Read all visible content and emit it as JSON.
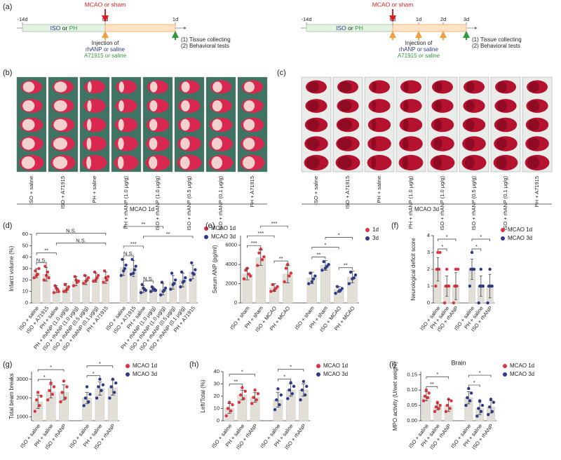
{
  "panel_a": {
    "label": "(a)",
    "timelines": [
      {
        "days": [
          "-14d",
          "0d",
          "1d"
        ],
        "surgery": "MCAO or sham",
        "pretreatment": {
          "drug1": "ISO",
          "joiner": "or",
          "drug2": "PH"
        },
        "injection": [
          "Injection of",
          "rhANP or saline",
          "A71915 or saline"
        ],
        "outcome": [
          "(1) Tissue collecting",
          "(2) Behavioral tests"
        ]
      },
      {
        "days": [
          "-14d",
          "0d",
          "1d",
          "2d",
          "3d"
        ],
        "surgery": "MCAO or sham",
        "pretreatment": {
          "drug1": "ISO",
          "joiner": "or",
          "drug2": "PH"
        },
        "injection": [
          "Injection of",
          "rhANP or saline",
          "A71915 or saline"
        ],
        "outcome": [
          "(1) Tissue collecting",
          "(2) Behavioral tests"
        ]
      }
    ]
  },
  "panel_b": {
    "label": "(b)",
    "group": "MCAO 1d",
    "columns": [
      "ISO + saline",
      "ISO + A71915",
      "PH + saline",
      "PH + rhANP (1.0 μg/g)",
      "ISO + rhANP (1.0 μg/g)",
      "ISO + rhANP (0.5 μg/g)",
      "ISO + rhANP (0.1 μg/g)",
      "PH + A71915"
    ]
  },
  "panel_c": {
    "label": "(c)",
    "group": "MCAO 3d",
    "columns": [
      "ISO + saline",
      "ISO + A71915",
      "PH + saline",
      "PH + rhANP (1.0 μg/g)",
      "ISO + rhANP (1.0 μg/g)",
      "ISO + rhANP (0.5 μg/g)",
      "ISO + rhANP (0.1 μg/g)",
      "PH + A71915"
    ]
  },
  "chart_data": [
    {
      "type": "bar",
      "label": "(d)",
      "ylabel": "Infarct volume (%)",
      "ylim": [
        0,
        60
      ],
      "yticks": [
        0,
        10,
        20,
        30,
        40,
        50,
        60
      ],
      "legend": "upper right",
      "series": [
        {
          "name": "MCAO 1d",
          "color": "#e0323c",
          "categories": [
            "ISO + saline",
            "ISO + A71915",
            "PH + saline",
            "PH + rhANP (1.0 μg/g)",
            "ISO + rhANP (1.0 μg/g)",
            "ISO + rhANP (0.5 μg/g)",
            "ISO + rhANP (0.1 μg/g)",
            "PH + A71915"
          ],
          "values": [
            26,
            25,
            12,
            13,
            19,
            20,
            22,
            22
          ],
          "errors": [
            4,
            6,
            3,
            4,
            4,
            4,
            4,
            5
          ],
          "points": [
            [
              22,
              25,
              28,
              30,
              24
            ],
            [
              20,
              27,
              32,
              22,
              24
            ],
            [
              9,
              12,
              15,
              10,
              13
            ],
            [
              10,
              12,
              16,
              14,
              11
            ],
            [
              15,
              18,
              23,
              19,
              20
            ],
            [
              17,
              20,
              24,
              22,
              19
            ],
            [
              19,
              22,
              27,
              24,
              20
            ],
            [
              18,
              20,
              28,
              23,
              22
            ]
          ],
          "brackets": [
            {
              "text": "N.S.",
              "from": 0,
              "to": 1
            },
            {
              "text": "**",
              "from": 0,
              "to": 2
            },
            {
              "text": "N.S.",
              "from": 2,
              "to": 7
            },
            {
              "text": "N.S.",
              "from": 0,
              "to": 7
            }
          ]
        },
        {
          "name": "MCAO 3d",
          "color": "#2b3a8c",
          "categories": [
            "ISO + saline",
            "ISO + A71915",
            "PH + saline",
            "PH + rhANP (1.0 μg/g)",
            "ISO + rhANP (1.0 μg/g)",
            "ISO + rhANP (0.5 μg/g)",
            "ISO + rhANP (0.1 μg/g)",
            "PH + A71915"
          ],
          "values": [
            31,
            30,
            12,
            12,
            12,
            18,
            20,
            27
          ],
          "errors": [
            7,
            7,
            3,
            2,
            5,
            6,
            6,
            6
          ],
          "points": [
            [
              24,
              30,
              38,
              33,
              28
            ],
            [
              25,
              29,
              38,
              32,
              26
            ],
            [
              9,
              12,
              16,
              11,
              13
            ],
            [
              10,
              12,
              14,
              11,
              12
            ],
            [
              7,
              11,
              18,
              13,
              10
            ],
            [
              12,
              17,
              26,
              20,
              16
            ],
            [
              14,
              19,
              27,
              22,
              18
            ],
            [
              20,
              25,
              35,
              29,
              26
            ]
          ],
          "brackets": [
            {
              "text": "N.S.",
              "from": 2,
              "to": 3
            },
            {
              "text": "N.S.",
              "from": 0,
              "to": 1
            },
            {
              "text": "***",
              "from": 0,
              "to": 2
            },
            {
              "text": "**",
              "from": 2,
              "to": 7
            },
            {
              "text": "**",
              "from": 0,
              "to": 4
            }
          ]
        }
      ]
    },
    {
      "type": "bar",
      "label": "(e)",
      "ylabel": "Serum ANP (pg/ml)",
      "ylim": [
        0,
        7000
      ],
      "yticks": [
        0,
        2000,
        4000,
        6000
      ],
      "legend": "upper right",
      "series": [
        {
          "name": "1d",
          "color": "#e0323c",
          "categories": [
            "ISO + sham",
            "PH + sham",
            "ISO + MCAO",
            "PH + MCAO"
          ],
          "values": [
            3000,
            4700,
            1600,
            3000
          ],
          "errors": [
            600,
            800,
            400,
            900
          ],
          "points": [
            [
              2500,
              3000,
              3400,
              2800,
              3600
            ],
            [
              3900,
              4500,
              5200,
              4800,
              5600
            ],
            [
              1200,
              1500,
              1900,
              1700,
              1300
            ],
            [
              2200,
              2800,
              3600,
              3100,
              4000
            ]
          ],
          "brackets": [
            {
              "text": "**",
              "from": 2,
              "to": 3
            },
            {
              "text": "***",
              "from": 0,
              "to": 1
            },
            {
              "text": "***",
              "from": 0,
              "to": 2
            },
            {
              "text": "***",
              "from": 1,
              "to": 3
            }
          ]
        },
        {
          "name": "3d",
          "color": "#2b3a8c",
          "categories": [
            "ISO + sham",
            "PH + sham",
            "ISO + MCAO",
            "PH + MCAO"
          ],
          "values": [
            2600,
            3900,
            1400,
            2700
          ],
          "errors": [
            600,
            500,
            300,
            600
          ],
          "points": [
            [
              2000,
              2500,
              3100,
              2800,
              2200
            ],
            [
              3400,
              3800,
              4300,
              4000,
              3600
            ],
            [
              1000,
              1300,
              1700,
              1500,
              1200
            ],
            [
              2000,
              2600,
              3200,
              2900,
              2500
            ]
          ],
          "brackets": [
            {
              "text": "**",
              "from": 2,
              "to": 3
            },
            {
              "text": "**",
              "from": 0,
              "to": 1
            },
            {
              "text": "*",
              "from": 0,
              "to": 2
            },
            {
              "text": "*",
              "from": 1,
              "to": 3
            }
          ]
        }
      ]
    },
    {
      "type": "bar",
      "label": "(f)",
      "ylabel": "Neurological deficit score",
      "ylim": [
        0,
        4
      ],
      "yticks": [
        0,
        1,
        2,
        3,
        4
      ],
      "legend": "upper right",
      "series": [
        {
          "name": "MCAO 1d",
          "color": "#e0323c",
          "categories": [
            "ISO + saline",
            "PH + saline",
            "ISO + rhANP"
          ],
          "values": [
            2,
            1,
            1
          ],
          "errors": [
            0.7,
            0.6,
            0.8
          ],
          "points": [
            [
              1,
              2,
              2,
              3,
              3
            ],
            [
              0,
              1,
              1,
              1,
              2
            ],
            [
              0,
              1,
              1,
              2,
              2
            ]
          ],
          "brackets": [
            {
              "text": "*",
              "from": 0,
              "to": 1
            },
            {
              "text": "*",
              "from": 0,
              "to": 2
            }
          ]
        },
        {
          "name": "MCAO 3d",
          "color": "#2b3a8c",
          "categories": [
            "ISO + saline",
            "PH + saline",
            "ISO + rhANP"
          ],
          "values": [
            2,
            1,
            1
          ],
          "errors": [
            0.6,
            0.6,
            0.7
          ],
          "points": [
            [
              1,
              2,
              2,
              2,
              3
            ],
            [
              0,
              1,
              1,
              1,
              2
            ],
            [
              0,
              1,
              1,
              1,
              2
            ]
          ],
          "brackets": [
            {
              "text": "*",
              "from": 0,
              "to": 1
            },
            {
              "text": "*",
              "from": 0,
              "to": 2
            }
          ]
        }
      ]
    },
    {
      "type": "bar",
      "label": "(g)",
      "ylabel": "Total beam breaks",
      "ylim": [
        800,
        3400
      ],
      "yticks": [
        1000,
        2000,
        3000
      ],
      "legend": "upper right",
      "series": [
        {
          "name": "MCAO 1d",
          "color": "#e0323c",
          "categories": [
            "ISO + saline",
            "PH + saline",
            "ISO + rhANP"
          ],
          "values": [
            1800,
            2350,
            2300
          ],
          "errors": [
            350,
            350,
            400
          ],
          "points": [
            [
              1300,
              1600,
              1900,
              2100,
              2300
            ],
            [
              1900,
              2200,
              2400,
              2600,
              2800
            ],
            [
              1800,
              2000,
              2300,
              2600,
              2900
            ]
          ],
          "brackets": [
            {
              "text": "*",
              "from": 0,
              "to": 1
            },
            {
              "text": "*",
              "from": 0,
              "to": 2
            }
          ]
        },
        {
          "name": "MCAO 3d",
          "color": "#2b3a8c",
          "categories": [
            "ISO + saline",
            "PH + saline",
            "ISO + rhANP"
          ],
          "values": [
            2000,
            2500,
            2550
          ],
          "errors": [
            300,
            350,
            400
          ],
          "points": [
            [
              1600,
              1800,
              2000,
              2200,
              2600
            ],
            [
              2000,
              2400,
              2600,
              2700,
              3000
            ],
            [
              2000,
              2300,
              2600,
              2800,
              3000
            ]
          ],
          "brackets": [
            {
              "text": "*",
              "from": 0,
              "to": 1
            },
            {
              "text": "*",
              "from": 0,
              "to": 2
            }
          ]
        }
      ]
    },
    {
      "type": "bar",
      "label": "(h)",
      "ylabel": "Left/Total (%)",
      "ylim": [
        0,
        40
      ],
      "yticks": [
        0,
        10,
        20,
        30,
        40
      ],
      "legend": "upper right",
      "series": [
        {
          "name": "MCAO 1d",
          "color": "#e0323c",
          "categories": [
            "ISO + saline",
            "PH + saline",
            "ISO + rhANP"
          ],
          "values": [
            10,
            21,
            19
          ],
          "errors": [
            4,
            4,
            4
          ],
          "points": [
            [
              4,
              8,
              10,
              13,
              15
            ],
            [
              15,
              18,
              21,
              24,
              27
            ],
            [
              14,
              17,
              19,
              22,
              25
            ]
          ],
          "brackets": [
            {
              "text": "**",
              "from": 0,
              "to": 1
            },
            {
              "text": "*",
              "from": 0,
              "to": 2
            }
          ]
        },
        {
          "name": "MCAO 3d",
          "color": "#2b3a8c",
          "categories": [
            "ISO + saline",
            "PH + saline",
            "ISO + rhANP"
          ],
          "values": [
            17,
            25,
            25
          ],
          "errors": [
            6,
            5,
            5
          ],
          "points": [
            [
              9,
              13,
              17,
              21,
              26
            ],
            [
              18,
              22,
              25,
              28,
              31
            ],
            [
              17,
              21,
              25,
              28,
              32
            ]
          ],
          "brackets": [
            {
              "text": "*",
              "from": 0,
              "to": 1
            },
            {
              "text": "*",
              "from": 0,
              "to": 2
            }
          ]
        }
      ]
    },
    {
      "type": "bar",
      "label": "(i)",
      "title": "Brain",
      "ylabel": "MPO activity (U/wet weight)",
      "ylim": [
        0,
        0.16
      ],
      "yticks": [
        {
          "value": 0,
          "label": "0.00"
        },
        {
          "value": 0.05,
          "label": "0.05"
        },
        {
          "value": 0.1,
          "label": "0.10"
        },
        {
          "value": 0.15,
          "label": "0.15"
        }
      ],
      "legend": "upper right",
      "series": [
        {
          "name": "MCAO 1d",
          "color": "#e0323c",
          "categories": [
            "ISO + saline",
            "PH + saline",
            "ISO + rhANP"
          ],
          "values": [
            0.08,
            0.045,
            0.05
          ],
          "errors": [
            0.015,
            0.01,
            0.02
          ],
          "points": [
            [
              0.065,
              0.075,
              0.08,
              0.09,
              0.1
            ],
            [
              0.03,
              0.04,
              0.045,
              0.05,
              0.06
            ],
            [
              0.03,
              0.04,
              0.05,
              0.065,
              0.07
            ]
          ],
          "brackets": [
            {
              "text": "**",
              "from": 0,
              "to": 1
            },
            {
              "text": "*",
              "from": 0,
              "to": 2
            }
          ]
        },
        {
          "name": "MCAO 3d",
          "color": "#2b3a8c",
          "categories": [
            "ISO + saline",
            "PH + saline",
            "ISO + rhANP"
          ],
          "values": [
            0.075,
            0.04,
            0.045
          ],
          "errors": [
            0.02,
            0.02,
            0.02
          ],
          "points": [
            [
              0.05,
              0.065,
              0.075,
              0.09,
              0.105
            ],
            [
              0.015,
              0.03,
              0.04,
              0.05,
              0.065
            ],
            [
              0.02,
              0.03,
              0.045,
              0.06,
              0.07
            ]
          ],
          "brackets": [
            {
              "text": "*",
              "from": 0,
              "to": 1
            },
            {
              "text": "*",
              "from": 0,
              "to": 2
            }
          ]
        }
      ]
    }
  ]
}
